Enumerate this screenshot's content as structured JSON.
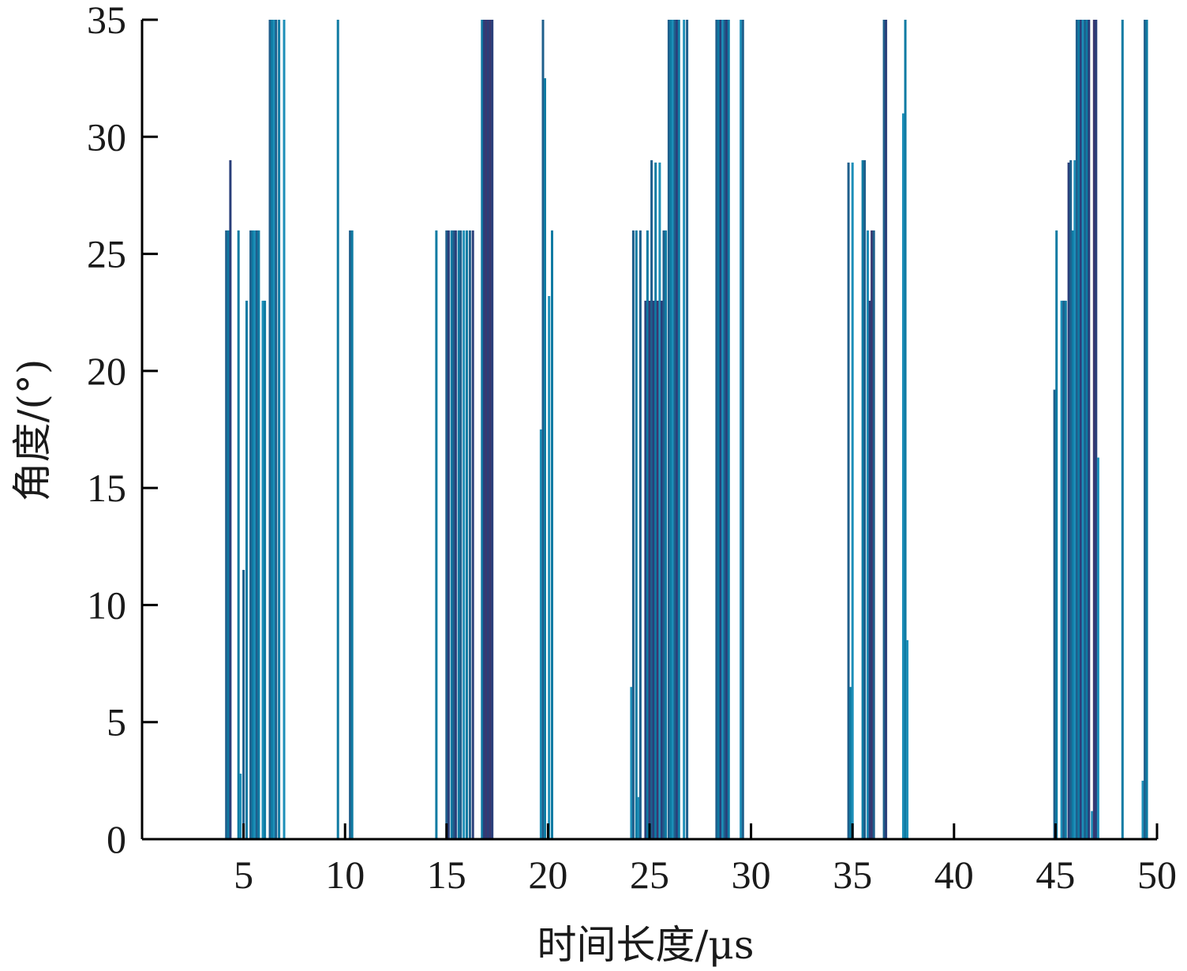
{
  "chart_data": {
    "type": "bar",
    "title": "",
    "xlabel": "时间长度/μs",
    "ylabel": "角度/(°)",
    "xlim": [
      0,
      50
    ],
    "ylim": [
      0,
      35
    ],
    "xticks": [
      5,
      10,
      15,
      20,
      25,
      30,
      35,
      40,
      45,
      50
    ],
    "yticks": [
      0,
      5,
      10,
      15,
      20,
      25,
      30,
      35
    ],
    "grid": false,
    "colors": [
      "#1f5f8c",
      "#0f7ba3",
      "#2a3f7a",
      "#1d8fb8",
      "#3a3870"
    ],
    "bars": [
      {
        "x": 4.15,
        "y": 26,
        "c": 0
      },
      {
        "x": 4.25,
        "y": 26,
        "c": 1
      },
      {
        "x": 4.35,
        "y": 29,
        "c": 2
      },
      {
        "x": 4.75,
        "y": 26,
        "c": 1
      },
      {
        "x": 4.85,
        "y": 2.8,
        "c": 3
      },
      {
        "x": 5.0,
        "y": 11.5,
        "c": 0
      },
      {
        "x": 5.15,
        "y": 23,
        "c": 1
      },
      {
        "x": 5.35,
        "y": 26,
        "c": 0
      },
      {
        "x": 5.45,
        "y": 26,
        "c": 1
      },
      {
        "x": 5.55,
        "y": 26,
        "c": 3
      },
      {
        "x": 5.65,
        "y": 26,
        "c": 0
      },
      {
        "x": 5.75,
        "y": 26,
        "c": 1
      },
      {
        "x": 5.95,
        "y": 23,
        "c": 3
      },
      {
        "x": 6.05,
        "y": 23,
        "c": 1
      },
      {
        "x": 6.3,
        "y": 35,
        "c": 0
      },
      {
        "x": 6.4,
        "y": 35,
        "c": 1
      },
      {
        "x": 6.5,
        "y": 35,
        "c": 3
      },
      {
        "x": 6.6,
        "y": 35,
        "c": 0
      },
      {
        "x": 6.75,
        "y": 35,
        "c": 1
      },
      {
        "x": 7.0,
        "y": 35,
        "c": 3
      },
      {
        "x": 9.65,
        "y": 35,
        "c": 1
      },
      {
        "x": 10.25,
        "y": 26,
        "c": 0
      },
      {
        "x": 10.35,
        "y": 26,
        "c": 1
      },
      {
        "x": 14.5,
        "y": 26,
        "c": 1
      },
      {
        "x": 15.0,
        "y": 26,
        "c": 0
      },
      {
        "x": 15.1,
        "y": 26,
        "c": 2
      },
      {
        "x": 15.25,
        "y": 26,
        "c": 1
      },
      {
        "x": 15.35,
        "y": 26,
        "c": 0
      },
      {
        "x": 15.45,
        "y": 26,
        "c": 2
      },
      {
        "x": 15.6,
        "y": 26,
        "c": 1
      },
      {
        "x": 15.7,
        "y": 26,
        "c": 0
      },
      {
        "x": 15.85,
        "y": 26,
        "c": 3
      },
      {
        "x": 16.0,
        "y": 26,
        "c": 1
      },
      {
        "x": 16.15,
        "y": 26,
        "c": 0
      },
      {
        "x": 16.3,
        "y": 26,
        "c": 2
      },
      {
        "x": 16.75,
        "y": 35,
        "c": 1
      },
      {
        "x": 16.85,
        "y": 35,
        "c": 2
      },
      {
        "x": 16.95,
        "y": 35,
        "c": 4
      },
      {
        "x": 17.05,
        "y": 35,
        "c": 2
      },
      {
        "x": 17.15,
        "y": 35,
        "c": 4
      },
      {
        "x": 17.25,
        "y": 35,
        "c": 2
      },
      {
        "x": 19.65,
        "y": 17.5,
        "c": 3
      },
      {
        "x": 19.75,
        "y": 35,
        "c": 0
      },
      {
        "x": 19.85,
        "y": 32.5,
        "c": 1
      },
      {
        "x": 20.05,
        "y": 23.2,
        "c": 3
      },
      {
        "x": 20.2,
        "y": 26,
        "c": 1
      },
      {
        "x": 24.1,
        "y": 6.5,
        "c": 3
      },
      {
        "x": 24.2,
        "y": 26,
        "c": 0
      },
      {
        "x": 24.35,
        "y": 26,
        "c": 1
      },
      {
        "x": 24.45,
        "y": 1.8,
        "c": 3
      },
      {
        "x": 24.55,
        "y": 26,
        "c": 0
      },
      {
        "x": 24.8,
        "y": 23,
        "c": 2
      },
      {
        "x": 24.9,
        "y": 26,
        "c": 1
      },
      {
        "x": 25.0,
        "y": 23,
        "c": 4
      },
      {
        "x": 25.1,
        "y": 29,
        "c": 0
      },
      {
        "x": 25.2,
        "y": 23,
        "c": 2
      },
      {
        "x": 25.3,
        "y": 28.9,
        "c": 1
      },
      {
        "x": 25.4,
        "y": 23,
        "c": 4
      },
      {
        "x": 25.5,
        "y": 28.9,
        "c": 3
      },
      {
        "x": 25.6,
        "y": 23,
        "c": 2
      },
      {
        "x": 25.7,
        "y": 26,
        "c": 0
      },
      {
        "x": 25.8,
        "y": 26,
        "c": 1
      },
      {
        "x": 25.95,
        "y": 35,
        "c": 0
      },
      {
        "x": 26.05,
        "y": 35,
        "c": 1
      },
      {
        "x": 26.15,
        "y": 35,
        "c": 3
      },
      {
        "x": 26.25,
        "y": 35,
        "c": 0
      },
      {
        "x": 26.35,
        "y": 35,
        "c": 2
      },
      {
        "x": 26.45,
        "y": 35,
        "c": 1
      },
      {
        "x": 26.7,
        "y": 35,
        "c": 3
      },
      {
        "x": 26.85,
        "y": 35,
        "c": 0
      },
      {
        "x": 28.3,
        "y": 35,
        "c": 0
      },
      {
        "x": 28.4,
        "y": 35,
        "c": 1
      },
      {
        "x": 28.5,
        "y": 35,
        "c": 2
      },
      {
        "x": 28.6,
        "y": 35,
        "c": 3
      },
      {
        "x": 28.7,
        "y": 35,
        "c": 0
      },
      {
        "x": 28.8,
        "y": 35,
        "c": 2
      },
      {
        "x": 28.9,
        "y": 35,
        "c": 1
      },
      {
        "x": 29.5,
        "y": 35,
        "c": 3
      },
      {
        "x": 29.6,
        "y": 35,
        "c": 0
      },
      {
        "x": 34.8,
        "y": 28.9,
        "c": 0
      },
      {
        "x": 34.9,
        "y": 6.5,
        "c": 1
      },
      {
        "x": 35.0,
        "y": 28.9,
        "c": 3
      },
      {
        "x": 35.5,
        "y": 29,
        "c": 1
      },
      {
        "x": 35.6,
        "y": 29,
        "c": 0
      },
      {
        "x": 35.75,
        "y": 26,
        "c": 3
      },
      {
        "x": 35.85,
        "y": 23,
        "c": 2
      },
      {
        "x": 35.95,
        "y": 26,
        "c": 4
      },
      {
        "x": 36.05,
        "y": 26,
        "c": 0
      },
      {
        "x": 36.55,
        "y": 35,
        "c": 0
      },
      {
        "x": 36.65,
        "y": 35,
        "c": 2
      },
      {
        "x": 37.5,
        "y": 31,
        "c": 3
      },
      {
        "x": 37.6,
        "y": 35,
        "c": 1
      },
      {
        "x": 37.7,
        "y": 8.5,
        "c": 3
      },
      {
        "x": 44.95,
        "y": 19.2,
        "c": 0
      },
      {
        "x": 45.05,
        "y": 26,
        "c": 1
      },
      {
        "x": 45.3,
        "y": 23,
        "c": 3
      },
      {
        "x": 45.4,
        "y": 23,
        "c": 0
      },
      {
        "x": 45.5,
        "y": 23,
        "c": 1
      },
      {
        "x": 45.65,
        "y": 28.9,
        "c": 2
      },
      {
        "x": 45.75,
        "y": 29,
        "c": 0
      },
      {
        "x": 45.85,
        "y": 26,
        "c": 1
      },
      {
        "x": 45.95,
        "y": 29,
        "c": 3
      },
      {
        "x": 46.05,
        "y": 35,
        "c": 0
      },
      {
        "x": 46.15,
        "y": 35,
        "c": 1
      },
      {
        "x": 46.25,
        "y": 35,
        "c": 2
      },
      {
        "x": 46.35,
        "y": 35,
        "c": 3
      },
      {
        "x": 46.45,
        "y": 35,
        "c": 0
      },
      {
        "x": 46.55,
        "y": 35,
        "c": 1
      },
      {
        "x": 46.65,
        "y": 35,
        "c": 2
      },
      {
        "x": 46.8,
        "y": 1.2,
        "c": 3
      },
      {
        "x": 46.9,
        "y": 35,
        "c": 4
      },
      {
        "x": 47.0,
        "y": 35,
        "c": 2
      },
      {
        "x": 47.1,
        "y": 16.3,
        "c": 3
      },
      {
        "x": 48.3,
        "y": 35,
        "c": 1
      },
      {
        "x": 49.3,
        "y": 2.5,
        "c": 3
      },
      {
        "x": 49.4,
        "y": 35,
        "c": 0
      },
      {
        "x": 49.5,
        "y": 35,
        "c": 1
      }
    ]
  }
}
